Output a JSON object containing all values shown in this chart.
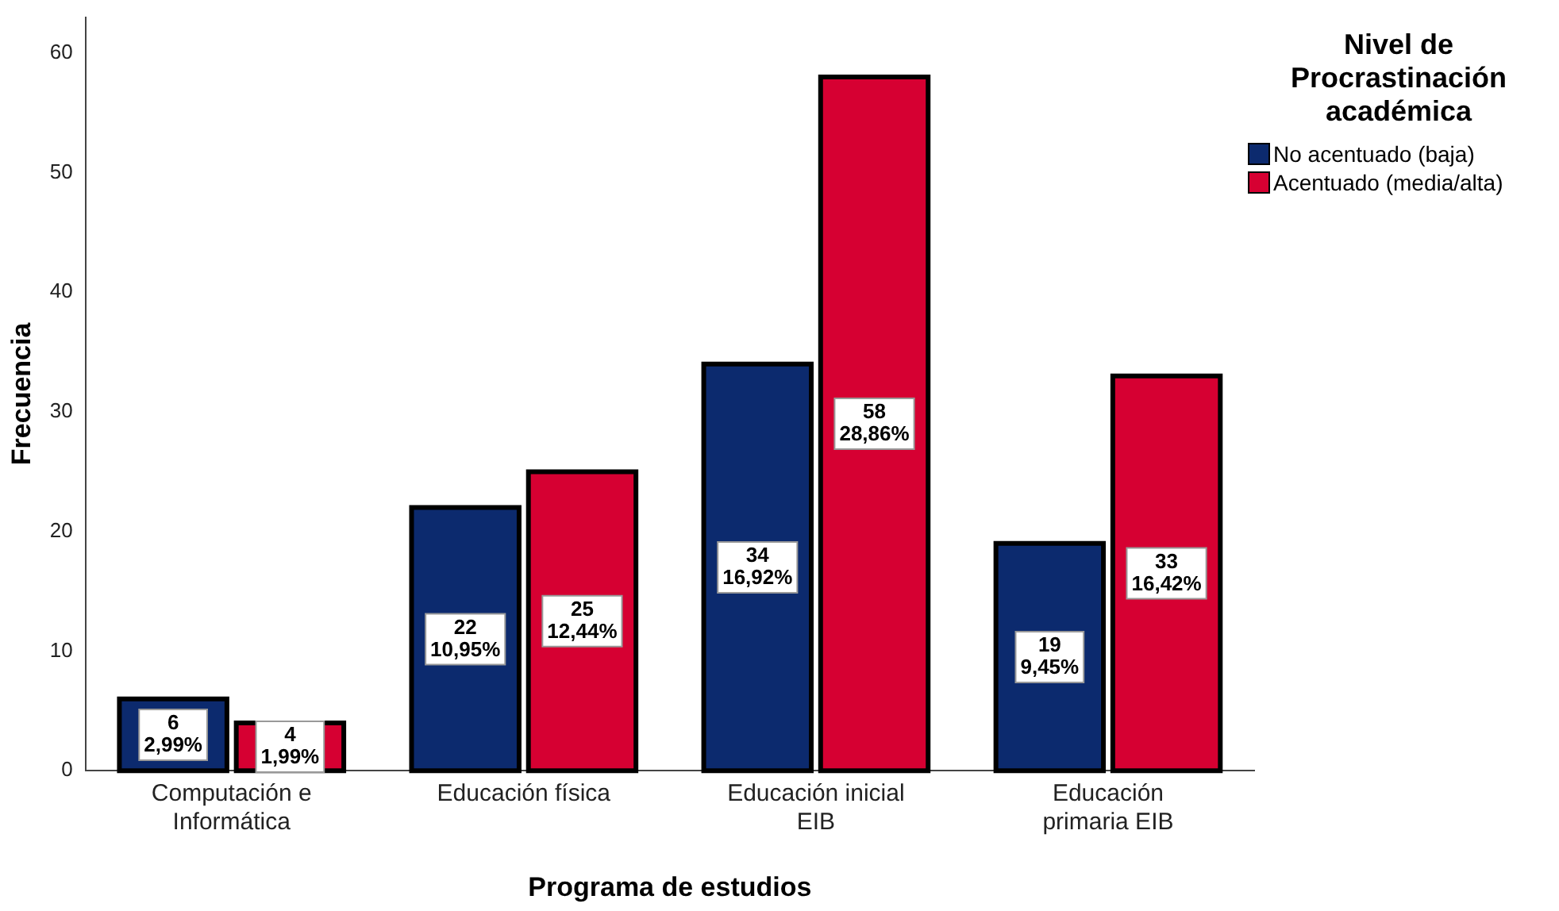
{
  "chart_data": {
    "type": "bar",
    "xlabel": "Programa de estudios",
    "ylabel": "Frecuencia",
    "legend_title": "Nivel de Procrastinación académica",
    "legend": "top right",
    "categories": [
      "Computación e Informática",
      "Educación física",
      "Educación inicial EIB",
      "Educación primaria EIB"
    ],
    "series": [
      {
        "name": "No acentuado (baja)",
        "color": "#0c2a6e",
        "values": [
          6,
          22,
          34,
          19
        ],
        "value_labels": [
          "6\n2,99%",
          "22\n10,95%",
          "34\n16,92%",
          "19\n9,45%"
        ]
      },
      {
        "name": "Acentuado (media/alta)",
        "color": "#d60032",
        "values": [
          4,
          25,
          58,
          33
        ],
        "value_labels": [
          "4\n1,99%",
          "25\n12,44%",
          "58\n28,86%",
          "33\n16,42%"
        ]
      }
    ],
    "ylim": [
      0,
      63
    ],
    "yticks": [
      0,
      10,
      20,
      30,
      40,
      50,
      60
    ],
    "grid": false
  }
}
